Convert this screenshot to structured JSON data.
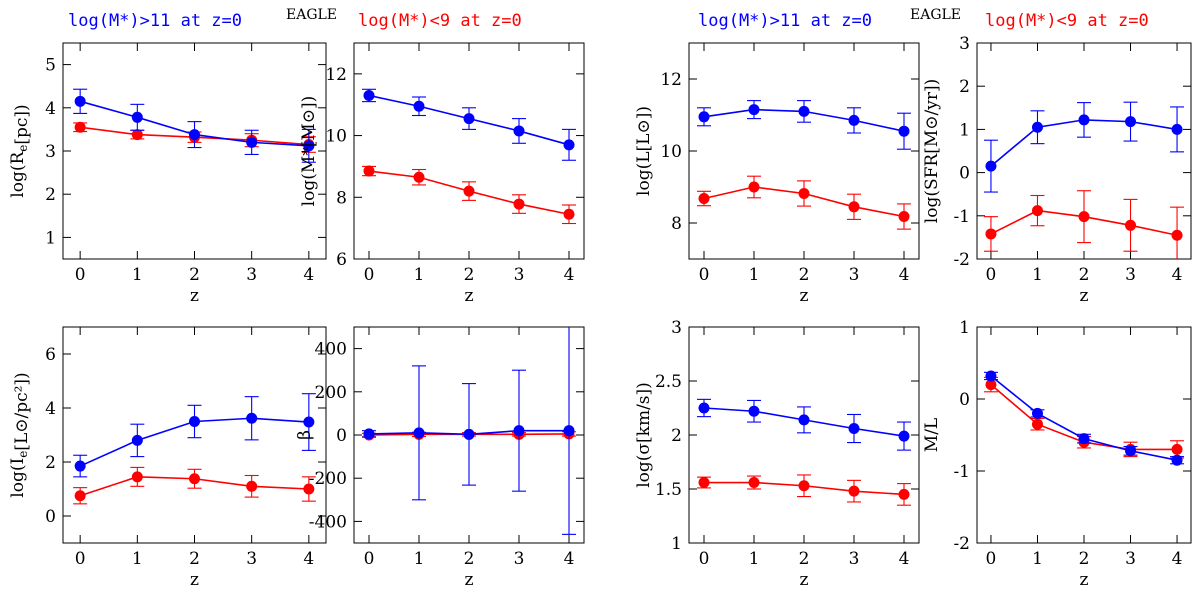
{
  "figure": {
    "headers": [
      {
        "blue": "log(M*)>11 at z=0",
        "eagle": "EAGLE",
        "red": "log(M*)<9 at z=0"
      },
      {
        "blue": "log(M*)>11 at z=0",
        "eagle": "EAGLE",
        "red": "log(M*)<9 at z=0"
      }
    ],
    "colors": {
      "high_mass": "#0000ff",
      "low_mass": "#ff0000",
      "axis": "#000000"
    }
  },
  "chart_data": [
    {
      "type": "line",
      "id": "re",
      "xlabel": "z",
      "ylabel": "log(R_e[pc])",
      "x": [
        0,
        1,
        2,
        3,
        4
      ],
      "xlim": [
        -0.3,
        4.3
      ],
      "ylim": [
        0.5,
        5.5
      ],
      "xticks": [
        0,
        1,
        2,
        3,
        4
      ],
      "yticks": [
        1,
        2,
        3,
        4,
        5
      ],
      "series": [
        {
          "name": "log(M*)>11 at z=0",
          "color": "#0000ff",
          "values": [
            4.15,
            3.78,
            3.38,
            3.2,
            3.12
          ],
          "errors": [
            0.28,
            0.3,
            0.3,
            0.28,
            0.38
          ]
        },
        {
          "name": "log(M*)<9 at z=0",
          "color": "#ff0000",
          "values": [
            3.55,
            3.38,
            3.32,
            3.25,
            3.15
          ],
          "errors": [
            0.1,
            0.1,
            0.12,
            0.15,
            0.18
          ]
        }
      ]
    },
    {
      "type": "line",
      "id": "mstar",
      "xlabel": "z",
      "ylabel": "log(M*[M⊙])",
      "x": [
        0,
        1,
        2,
        3,
        4
      ],
      "xlim": [
        -0.3,
        4.3
      ],
      "ylim": [
        6,
        13
      ],
      "xticks": [
        0,
        1,
        2,
        3,
        4
      ],
      "yticks": [
        6,
        8,
        10,
        12
      ],
      "series": [
        {
          "name": "log(M*)>11 at z=0",
          "color": "#0000ff",
          "values": [
            11.3,
            10.95,
            10.55,
            10.15,
            9.7
          ],
          "errors": [
            0.2,
            0.3,
            0.35,
            0.4,
            0.5
          ]
        },
        {
          "name": "log(M*)<9 at z=0",
          "color": "#ff0000",
          "values": [
            8.85,
            8.65,
            8.2,
            7.78,
            7.45
          ],
          "errors": [
            0.15,
            0.25,
            0.3,
            0.3,
            0.3
          ]
        }
      ]
    },
    {
      "type": "line",
      "id": "lum",
      "xlabel": "z",
      "ylabel": "log(L[L⊙])",
      "x": [
        0,
        1,
        2,
        3,
        4
      ],
      "xlim": [
        -0.3,
        4.3
      ],
      "ylim": [
        7,
        13
      ],
      "xticks": [
        0,
        1,
        2,
        3,
        4
      ],
      "yticks": [
        8,
        10,
        12
      ],
      "series": [
        {
          "name": "log(M*)>11 at z=0",
          "color": "#0000ff",
          "values": [
            10.95,
            11.15,
            11.1,
            10.85,
            10.55
          ],
          "errors": [
            0.25,
            0.25,
            0.3,
            0.35,
            0.5
          ]
        },
        {
          "name": "log(M*)<9 at z=0",
          "color": "#ff0000",
          "values": [
            8.68,
            9.0,
            8.82,
            8.45,
            8.18
          ],
          "errors": [
            0.2,
            0.3,
            0.35,
            0.35,
            0.35
          ]
        }
      ]
    },
    {
      "type": "line",
      "id": "sfr",
      "xlabel": "z",
      "ylabel": "log(SFR[M⊙/yr])",
      "x": [
        0,
        1,
        2,
        3,
        4
      ],
      "xlim": [
        -0.3,
        4.3
      ],
      "ylim": [
        -2,
        3
      ],
      "xticks": [
        0,
        1,
        2,
        3,
        4
      ],
      "yticks": [
        -2,
        -1,
        0,
        1,
        2,
        3
      ],
      "series": [
        {
          "name": "log(M*)>11 at z=0",
          "color": "#0000ff",
          "values": [
            0.15,
            1.05,
            1.22,
            1.18,
            1.0
          ],
          "errors": [
            0.6,
            0.38,
            0.4,
            0.45,
            0.52
          ]
        },
        {
          "name": "log(M*)<9 at z=0",
          "color": "#ff0000",
          "values": [
            -1.42,
            -0.88,
            -1.02,
            -1.22,
            -1.45
          ],
          "errors": [
            0.4,
            0.35,
            0.6,
            0.6,
            0.65
          ]
        }
      ]
    },
    {
      "type": "line",
      "id": "ie",
      "xlabel": "z",
      "ylabel": "log(I_e[L⊙/pc²])",
      "x": [
        0,
        1,
        2,
        3,
        4
      ],
      "xlim": [
        -0.3,
        4.3
      ],
      "ylim": [
        -1,
        7
      ],
      "xticks": [
        0,
        1,
        2,
        3,
        4
      ],
      "yticks": [
        0,
        2,
        4,
        6
      ],
      "series": [
        {
          "name": "log(M*)>11 at z=0",
          "color": "#0000ff",
          "values": [
            1.85,
            2.8,
            3.5,
            3.62,
            3.48
          ],
          "errors": [
            0.4,
            0.6,
            0.6,
            0.8,
            1.05
          ]
        },
        {
          "name": "log(M*)<9 at z=0",
          "color": "#ff0000",
          "values": [
            0.75,
            1.45,
            1.38,
            1.1,
            1.0
          ],
          "errors": [
            0.3,
            0.35,
            0.35,
            0.4,
            0.45
          ]
        }
      ]
    },
    {
      "type": "line",
      "id": "beta",
      "xlabel": "z",
      "ylabel": "β",
      "x": [
        0,
        1,
        2,
        3,
        4
      ],
      "xlim": [
        -0.3,
        4.3
      ],
      "ylim": [
        -500,
        500
      ],
      "xticks": [
        0,
        1,
        2,
        3,
        4
      ],
      "yticks": [
        -400,
        -200,
        0,
        200,
        400
      ],
      "series": [
        {
          "name": "log(M*)>11 at z=0",
          "color": "#0000ff",
          "values": [
            5,
            10,
            3,
            20,
            20
          ],
          "errors": [
            15,
            310,
            235,
            280,
            480
          ]
        },
        {
          "name": "log(M*)<9 at z=0",
          "color": "#ff0000",
          "values": [
            0,
            3,
            3,
            3,
            5
          ],
          "errors": [
            8,
            10,
            8,
            8,
            10
          ]
        }
      ]
    },
    {
      "type": "line",
      "id": "sigma",
      "xlabel": "z",
      "ylabel": "log(σ[km/s])",
      "x": [
        0,
        1,
        2,
        3,
        4
      ],
      "xlim": [
        -0.3,
        4.3
      ],
      "ylim": [
        1,
        3
      ],
      "xticks": [
        0,
        1,
        2,
        3,
        4
      ],
      "yticks": [
        1,
        1.5,
        2,
        2.5,
        3
      ],
      "series": [
        {
          "name": "log(M*)>11 at z=0",
          "color": "#0000ff",
          "values": [
            2.25,
            2.22,
            2.14,
            2.06,
            1.99
          ],
          "errors": [
            0.08,
            0.1,
            0.12,
            0.13,
            0.13
          ]
        },
        {
          "name": "log(M*)<9 at z=0",
          "color": "#ff0000",
          "values": [
            1.56,
            1.56,
            1.53,
            1.48,
            1.45
          ],
          "errors": [
            0.05,
            0.06,
            0.1,
            0.1,
            0.1
          ]
        }
      ]
    },
    {
      "type": "line",
      "id": "ml",
      "xlabel": "z",
      "ylabel": "M/L",
      "x": [
        0,
        1,
        2,
        3,
        4
      ],
      "xlim": [
        -0.3,
        4.3
      ],
      "ylim": [
        -2,
        1
      ],
      "xticks": [
        0,
        1,
        2,
        3,
        4
      ],
      "yticks": [
        -2,
        -1,
        0,
        1
      ],
      "series": [
        {
          "name": "log(M*)>11 at z=0",
          "color": "#0000ff",
          "values": [
            0.32,
            -0.2,
            -0.55,
            -0.72,
            -0.85
          ],
          "errors": [
            0.05,
            0.05,
            0.06,
            0.06,
            0.05
          ]
        },
        {
          "name": "log(M*)<9 at z=0",
          "color": "#ff0000",
          "values": [
            0.2,
            -0.35,
            -0.6,
            -0.7,
            -0.7
          ],
          "errors": [
            0.1,
            0.08,
            0.08,
            0.1,
            0.12
          ]
        }
      ]
    }
  ]
}
